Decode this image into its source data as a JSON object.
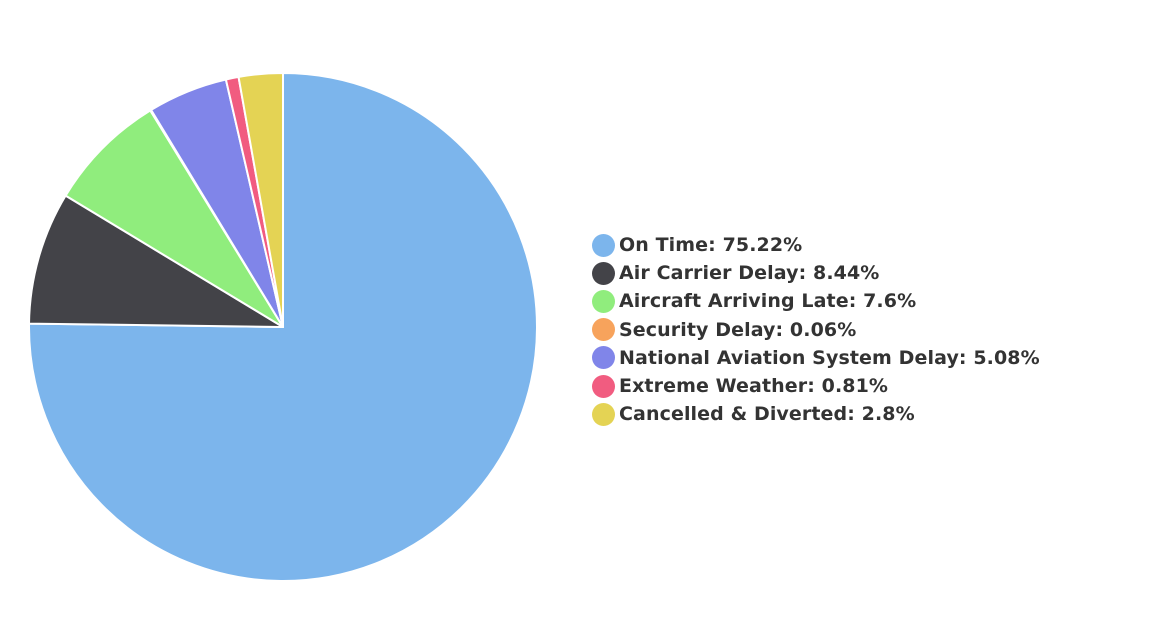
{
  "chart_data": {
    "type": "pie",
    "title": "",
    "start_angle": "12 o'clock",
    "direction": "clockwise",
    "legend_position": "right",
    "slices": [
      {
        "label": "On Time",
        "value": 75.22,
        "legend_text": "On Time: 75.22%",
        "color": "#7cb5ec"
      },
      {
        "label": "Air Carrier Delay",
        "value": 8.44,
        "legend_text": "Air Carrier Delay: 8.44%",
        "color": "#434348"
      },
      {
        "label": "Aircraft Arriving Late",
        "value": 7.6,
        "legend_text": "Aircraft Arriving Late: 7.6%",
        "color": "#90ed7d"
      },
      {
        "label": "Security Delay",
        "value": 0.06,
        "legend_text": "Security Delay: 0.06%",
        "color": "#f7a35c"
      },
      {
        "label": "National Aviation System Delay",
        "value": 5.08,
        "legend_text": "National Aviation System Delay: 5.08%",
        "color": "#8085e9"
      },
      {
        "label": "Extreme Weather",
        "value": 0.81,
        "legend_text": "Extreme Weather: 0.81%",
        "color": "#f15c80"
      },
      {
        "label": "Cancelled & Diverted",
        "value": 2.8,
        "legend_text": "Cancelled & Diverted: 2.8%",
        "color": "#e4d354"
      }
    ]
  }
}
